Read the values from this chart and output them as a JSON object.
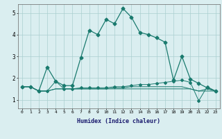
{
  "xlabel": "Humidex (Indice chaleur)",
  "x": [
    0,
    1,
    2,
    3,
    4,
    5,
    6,
    7,
    8,
    9,
    10,
    11,
    12,
    13,
    14,
    15,
    16,
    17,
    18,
    19,
    20,
    21,
    22,
    23
  ],
  "series1": [
    1.6,
    1.6,
    1.4,
    2.5,
    1.85,
    1.65,
    1.65,
    2.95,
    4.2,
    4.0,
    4.7,
    4.5,
    5.2,
    4.8,
    4.1,
    4.0,
    3.85,
    3.65,
    1.9,
    3.0,
    1.95,
    1.75,
    1.55,
    1.4
  ],
  "series2": [
    1.6,
    1.6,
    1.4,
    1.4,
    1.85,
    1.5,
    1.5,
    1.55,
    1.55,
    1.55,
    1.55,
    1.6,
    1.6,
    1.65,
    1.7,
    1.7,
    1.75,
    1.8,
    1.85,
    1.9,
    1.8,
    0.95,
    1.6,
    1.4
  ],
  "series3": [
    1.6,
    1.6,
    1.4,
    1.4,
    1.5,
    1.5,
    1.5,
    1.5,
    1.5,
    1.5,
    1.5,
    1.5,
    1.5,
    1.5,
    1.5,
    1.5,
    1.5,
    1.5,
    1.5,
    1.5,
    1.5,
    1.4,
    1.4,
    1.4
  ],
  "series4": [
    1.6,
    1.6,
    1.4,
    1.4,
    1.5,
    1.5,
    1.5,
    1.5,
    1.5,
    1.5,
    1.5,
    1.55,
    1.55,
    1.6,
    1.6,
    1.6,
    1.6,
    1.6,
    1.6,
    1.6,
    1.5,
    1.4,
    1.5,
    1.4
  ],
  "color": "#1a7a6e",
  "bg_color": "#daeef0",
  "grid_color": "#aacfcf",
  "ylim": [
    0.6,
    5.4
  ],
  "yticks": [
    1,
    2,
    3,
    4,
    5
  ],
  "xlim": [
    -0.5,
    23.5
  ]
}
